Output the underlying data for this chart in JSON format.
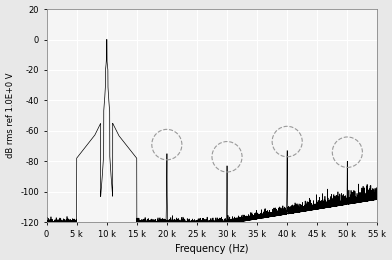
{
  "xlabel": "Frequency (Hz)",
  "ylabel": "dB rms ref 1.0E+0 V",
  "xlim": [
    0,
    55000
  ],
  "ylim": [
    -120,
    20
  ],
  "xticks": [
    0,
    5000,
    10000,
    15000,
    20000,
    25000,
    30000,
    35000,
    40000,
    45000,
    50000,
    55000
  ],
  "xticklabels": [
    "0",
    "5 k",
    "10 k",
    "15 k",
    "20 k",
    "25 k",
    "30 k",
    "35 k",
    "40 k",
    "45 k",
    "50 k",
    "55 k"
  ],
  "yticks": [
    -120,
    -100,
    -80,
    -60,
    -40,
    -20,
    0,
    20
  ],
  "main_spike_freq": 10000,
  "main_spike_db": 0,
  "harmonic_freqs": [
    20000,
    30000,
    40000,
    50000
  ],
  "harmonic_dbs": [
    -75,
    -83,
    -73,
    -80
  ],
  "noise_floor_base": -121,
  "noise_floor_flat_end": 30000,
  "noise_rise_end": 55000,
  "noise_rise_db": -105,
  "circle_radius_x": 2500,
  "circle_radius_y": 10,
  "background_color": "#e8e8e8",
  "plot_bg_color": "#f5f5f5",
  "line_color": "#000000",
  "grid_color": "#ffffff",
  "dpi": 100,
  "seed": 12
}
